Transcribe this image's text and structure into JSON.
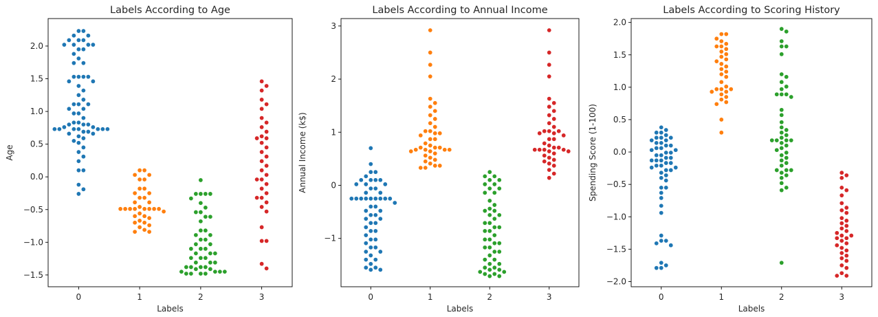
{
  "chart_data": [
    {
      "type": "scatter",
      "style": "swarm",
      "title": "Labels According to Age",
      "xlabel": "Labels",
      "ylabel": "Age",
      "categories": [
        "0",
        "1",
        "2",
        "3"
      ],
      "ylim": [
        -1.68,
        2.42
      ],
      "yticks": [
        -1.5,
        -1.0,
        -0.5,
        0.0,
        0.5,
        1.0,
        1.5,
        2.0
      ],
      "ytick_labels": [
        "−1.5",
        "−1.0",
        "−0.5",
        "0.0",
        "0.5",
        "1.0",
        "1.5",
        "2.0"
      ],
      "series": [
        {
          "category": "0",
          "color": "#1f77b4",
          "values": [
            2.23,
            2.23,
            2.16,
            2.16,
            2.09,
            2.09,
            2.09,
            2.02,
            2.02,
            2.02,
            2.02,
            1.95,
            1.95,
            1.88,
            1.81,
            1.74,
            1.74,
            1.53,
            1.53,
            1.53,
            1.53,
            1.46,
            1.46,
            1.39,
            1.32,
            1.25,
            1.18,
            1.11,
            1.11,
            1.11,
            1.04,
            1.04,
            0.97,
            0.97,
            0.9,
            0.83,
            0.83,
            0.8,
            0.8,
            0.8,
            0.76,
            0.76,
            0.73,
            0.73,
            0.73,
            0.73,
            0.73,
            0.73,
            0.73,
            0.69,
            0.69,
            0.66,
            0.66,
            0.62,
            0.59,
            0.55,
            0.52,
            0.45,
            0.38,
            0.31,
            0.24,
            0.1,
            0.1,
            -0.12,
            -0.19,
            -0.26
          ]
        },
        {
          "category": "1",
          "color": "#ff7f0e",
          "values": [
            0.1,
            0.1,
            0.03,
            0.03,
            -0.04,
            -0.04,
            -0.18,
            -0.18,
            -0.25,
            -0.25,
            -0.32,
            -0.32,
            -0.39,
            -0.39,
            -0.46,
            -0.49,
            -0.49,
            -0.49,
            -0.49,
            -0.49,
            -0.49,
            -0.49,
            -0.49,
            -0.53,
            -0.56,
            -0.6,
            -0.6,
            -0.63,
            -0.67,
            -0.7,
            -0.7,
            -0.74,
            -0.77,
            -0.81,
            -0.84,
            -0.84
          ]
        },
        {
          "category": "2",
          "color": "#2ca02c",
          "values": [
            -0.05,
            -0.26,
            -0.26,
            -0.26,
            -0.26,
            -0.33,
            -0.4,
            -0.47,
            -0.54,
            -0.54,
            -0.61,
            -0.61,
            -0.68,
            -0.82,
            -0.82,
            -0.89,
            -0.89,
            -0.96,
            -0.96,
            -1.03,
            -1.03,
            -1.1,
            -1.1,
            -1.1,
            -1.17,
            -1.17,
            -1.17,
            -1.24,
            -1.24,
            -1.24,
            -1.31,
            -1.31,
            -1.31,
            -1.38,
            -1.38,
            -1.38,
            -1.38,
            -1.41,
            -1.41,
            -1.45,
            -1.45,
            -1.45,
            -1.45,
            -1.48,
            -1.48,
            -1.48,
            -1.48
          ]
        },
        {
          "category": "3",
          "color": "#d62728",
          "values": [
            1.46,
            1.39,
            1.32,
            1.18,
            1.11,
            1.04,
            0.9,
            0.83,
            0.76,
            0.69,
            0.62,
            0.59,
            0.59,
            0.52,
            0.45,
            0.38,
            0.31,
            0.24,
            0.17,
            0.1,
            0.03,
            -0.04,
            -0.04,
            -0.11,
            -0.18,
            -0.25,
            -0.32,
            -0.32,
            -0.39,
            -0.46,
            -0.53,
            -0.77,
            -0.98,
            -0.98,
            -1.33,
            -1.4
          ]
        }
      ]
    },
    {
      "type": "scatter",
      "style": "swarm",
      "title": "Labels According to Annual Income",
      "xlabel": "Labels",
      "ylabel": "Annual Income (k$)",
      "categories": [
        "0",
        "1",
        "2",
        "3"
      ],
      "ylim": [
        -1.91,
        3.14
      ],
      "yticks": [
        -1,
        0,
        1,
        2,
        3
      ],
      "ytick_labels": [
        "−1",
        "0",
        "1",
        "2",
        "3"
      ],
      "series": [
        {
          "category": "0",
          "color": "#1f77b4",
          "values": [
            0.7,
            0.4,
            0.25,
            0.25,
            0.17,
            0.1,
            0.1,
            0.1,
            0.1,
            0.02,
            0.02,
            0.02,
            -0.06,
            -0.06,
            -0.14,
            -0.14,
            -0.25,
            -0.25,
            -0.25,
            -0.25,
            -0.25,
            -0.25,
            -0.25,
            -0.25,
            -0.25,
            -0.33,
            -0.4,
            -0.4,
            -0.48,
            -0.48,
            -0.56,
            -0.56,
            -0.63,
            -0.63,
            -0.71,
            -0.71,
            -0.79,
            -0.86,
            -0.86,
            -0.94,
            -1.02,
            -1.02,
            -1.09,
            -1.17,
            -1.17,
            -1.25,
            -1.25,
            -1.32,
            -1.4,
            -1.4,
            -1.48,
            -1.55,
            -1.55,
            -1.59,
            -1.59
          ]
        },
        {
          "category": "1",
          "color": "#ff7f0e",
          "values": [
            2.92,
            2.5,
            2.27,
            2.05,
            1.63,
            1.55,
            1.48,
            1.4,
            1.32,
            1.25,
            1.17,
            1.1,
            1.02,
            1.02,
            0.98,
            0.98,
            0.94,
            0.87,
            0.87,
            0.79,
            0.75,
            0.71,
            0.71,
            0.71,
            0.67,
            0.67,
            0.67,
            0.67,
            0.64,
            0.64,
            0.6,
            0.56,
            0.52,
            0.48,
            0.45,
            0.41,
            0.37,
            0.37,
            0.33,
            0.33
          ]
        },
        {
          "category": "2",
          "color": "#2ca02c",
          "values": [
            0.25,
            0.17,
            0.17,
            0.1,
            0.1,
            0.02,
            0.02,
            -0.06,
            -0.06,
            -0.14,
            -0.14,
            -0.29,
            -0.37,
            -0.44,
            -0.48,
            -0.48,
            -0.56,
            -0.56,
            -0.63,
            -0.71,
            -0.71,
            -0.79,
            -0.79,
            -0.86,
            -0.86,
            -0.94,
            -1.02,
            -1.02,
            -1.09,
            -1.09,
            -1.17,
            -1.17,
            -1.25,
            -1.25,
            -1.32,
            -1.4,
            -1.4,
            -1.48,
            -1.48,
            -1.55,
            -1.55,
            -1.59,
            -1.59,
            -1.63,
            -1.63,
            -1.67,
            -1.67,
            -1.71,
            -1.71
          ]
        },
        {
          "category": "3",
          "color": "#d62728",
          "values": [
            2.92,
            2.5,
            2.27,
            2.05,
            1.63,
            1.55,
            1.48,
            1.4,
            1.32,
            1.25,
            1.17,
            1.1,
            1.02,
            1.02,
            1.02,
            0.98,
            0.98,
            0.94,
            0.87,
            0.87,
            0.79,
            0.75,
            0.71,
            0.71,
            0.67,
            0.67,
            0.67,
            0.67,
            0.64,
            0.64,
            0.6,
            0.56,
            0.52,
            0.48,
            0.45,
            0.41,
            0.37,
            0.29,
            0.22,
            0.14
          ]
        }
      ]
    },
    {
      "type": "scatter",
      "style": "swarm",
      "title": "Labels According to Scoring History",
      "xlabel": "Labels",
      "ylabel": "Spending Score (1-100)",
      "categories": [
        "0",
        "1",
        "2",
        "3"
      ],
      "ylim": [
        -2.08,
        2.06
      ],
      "yticks": [
        -2.0,
        -1.5,
        -1.0,
        -0.5,
        0.0,
        0.5,
        1.0,
        1.5,
        2.0
      ],
      "ytick_labels": [
        "−2.0",
        "−1.5",
        "−1.0",
        "−0.5",
        "0.0",
        "0.5",
        "1.0",
        "1.5",
        "2.0"
      ],
      "series": [
        {
          "category": "0",
          "color": "#1f77b4",
          "values": [
            0.38,
            0.34,
            0.3,
            0.3,
            0.26,
            0.22,
            0.22,
            0.22,
            0.18,
            0.18,
            0.14,
            0.14,
            0.1,
            0.1,
            0.06,
            0.06,
            0.03,
            0.03,
            -0.01,
            -0.01,
            -0.05,
            -0.05,
            -0.09,
            -0.09,
            -0.13,
            -0.13,
            -0.13,
            -0.17,
            -0.17,
            -0.21,
            -0.21,
            -0.24,
            -0.24,
            -0.28,
            -0.28,
            -0.32,
            -0.36,
            -0.4,
            -0.44,
            -0.55,
            -0.55,
            -0.63,
            -0.71,
            -0.83,
            -0.94,
            -1.29,
            -1.37,
            -1.37,
            -1.41,
            -1.44,
            -1.71,
            -1.75,
            -1.79,
            -1.79
          ]
        },
        {
          "category": "1",
          "color": "#ff7f0e",
          "values": [
            1.82,
            1.82,
            1.75,
            1.71,
            1.67,
            1.63,
            1.63,
            1.59,
            1.55,
            1.51,
            1.47,
            1.43,
            1.4,
            1.36,
            1.32,
            1.28,
            1.24,
            1.2,
            1.16,
            1.08,
            1.01,
            0.97,
            0.97,
            0.97,
            0.93,
            0.93,
            0.89,
            0.85,
            0.81,
            0.77,
            0.74,
            0.5,
            0.3
          ]
        },
        {
          "category": "2",
          "color": "#2ca02c",
          "values": [
            1.9,
            1.86,
            1.71,
            1.63,
            1.63,
            1.51,
            1.2,
            1.16,
            1.08,
            1.01,
            0.97,
            0.89,
            0.89,
            0.89,
            0.85,
            0.65,
            0.57,
            0.46,
            0.38,
            0.34,
            0.3,
            0.26,
            0.22,
            0.18,
            0.18,
            0.18,
            0.18,
            0.14,
            0.1,
            0.06,
            0.03,
            -0.01,
            -0.05,
            -0.09,
            -0.13,
            -0.17,
            -0.21,
            -0.28,
            -0.28,
            -0.28,
            -0.32,
            -0.36,
            -0.4,
            -0.48,
            -0.55,
            -0.59,
            -1.71
          ]
        },
        {
          "category": "3",
          "color": "#d62728",
          "values": [
            -0.32,
            -0.36,
            -0.4,
            -0.55,
            -0.59,
            -0.67,
            -0.79,
            -0.86,
            -0.9,
            -0.94,
            -1.02,
            -1.06,
            -1.1,
            -1.14,
            -1.18,
            -1.22,
            -1.25,
            -1.29,
            -1.29,
            -1.33,
            -1.33,
            -1.37,
            -1.41,
            -1.44,
            -1.48,
            -1.52,
            -1.56,
            -1.6,
            -1.64,
            -1.68,
            -1.75,
            -1.79,
            -1.87,
            -1.91,
            -1.91
          ]
        }
      ]
    }
  ]
}
